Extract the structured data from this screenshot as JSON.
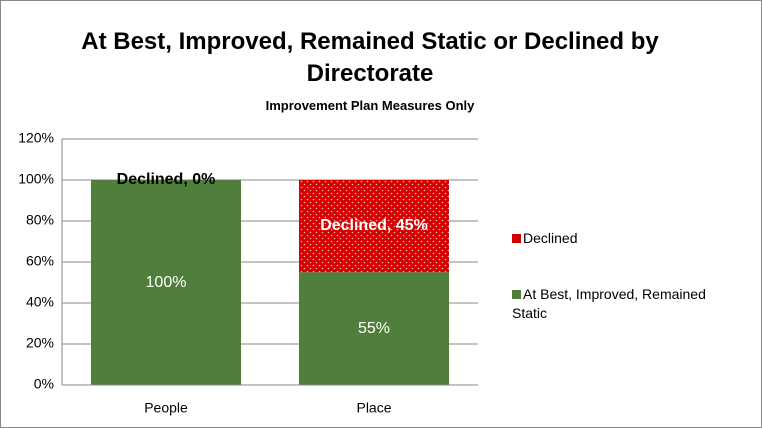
{
  "chart_data": {
    "type": "stacked_bar",
    "title": "At Best, Improved, Remained Static or Declined by Directorate",
    "subtitle": "Improvement Plan Measures Only",
    "categories": [
      "People",
      "Place"
    ],
    "series": [
      {
        "name": "At Best, Improved, Remained Static",
        "color": "#4f7f3b",
        "values": [
          100,
          55
        ],
        "value_labels": [
          "100%",
          "55%"
        ]
      },
      {
        "name": "Declined",
        "color": "#d40000",
        "values": [
          0,
          45
        ],
        "value_labels": [
          "Declined, 0%",
          "Declined, 45%"
        ]
      }
    ],
    "ylim": [
      0,
      120
    ],
    "yticks": [
      {
        "value": 0,
        "label": "0%"
      },
      {
        "value": 20,
        "label": "20%"
      },
      {
        "value": 40,
        "label": "40%"
      },
      {
        "value": 60,
        "label": "60%"
      },
      {
        "value": 80,
        "label": "80%"
      },
      {
        "value": 100,
        "label": "100%"
      },
      {
        "value": 120,
        "label": "120%"
      }
    ],
    "grid": true,
    "legend": "right"
  }
}
